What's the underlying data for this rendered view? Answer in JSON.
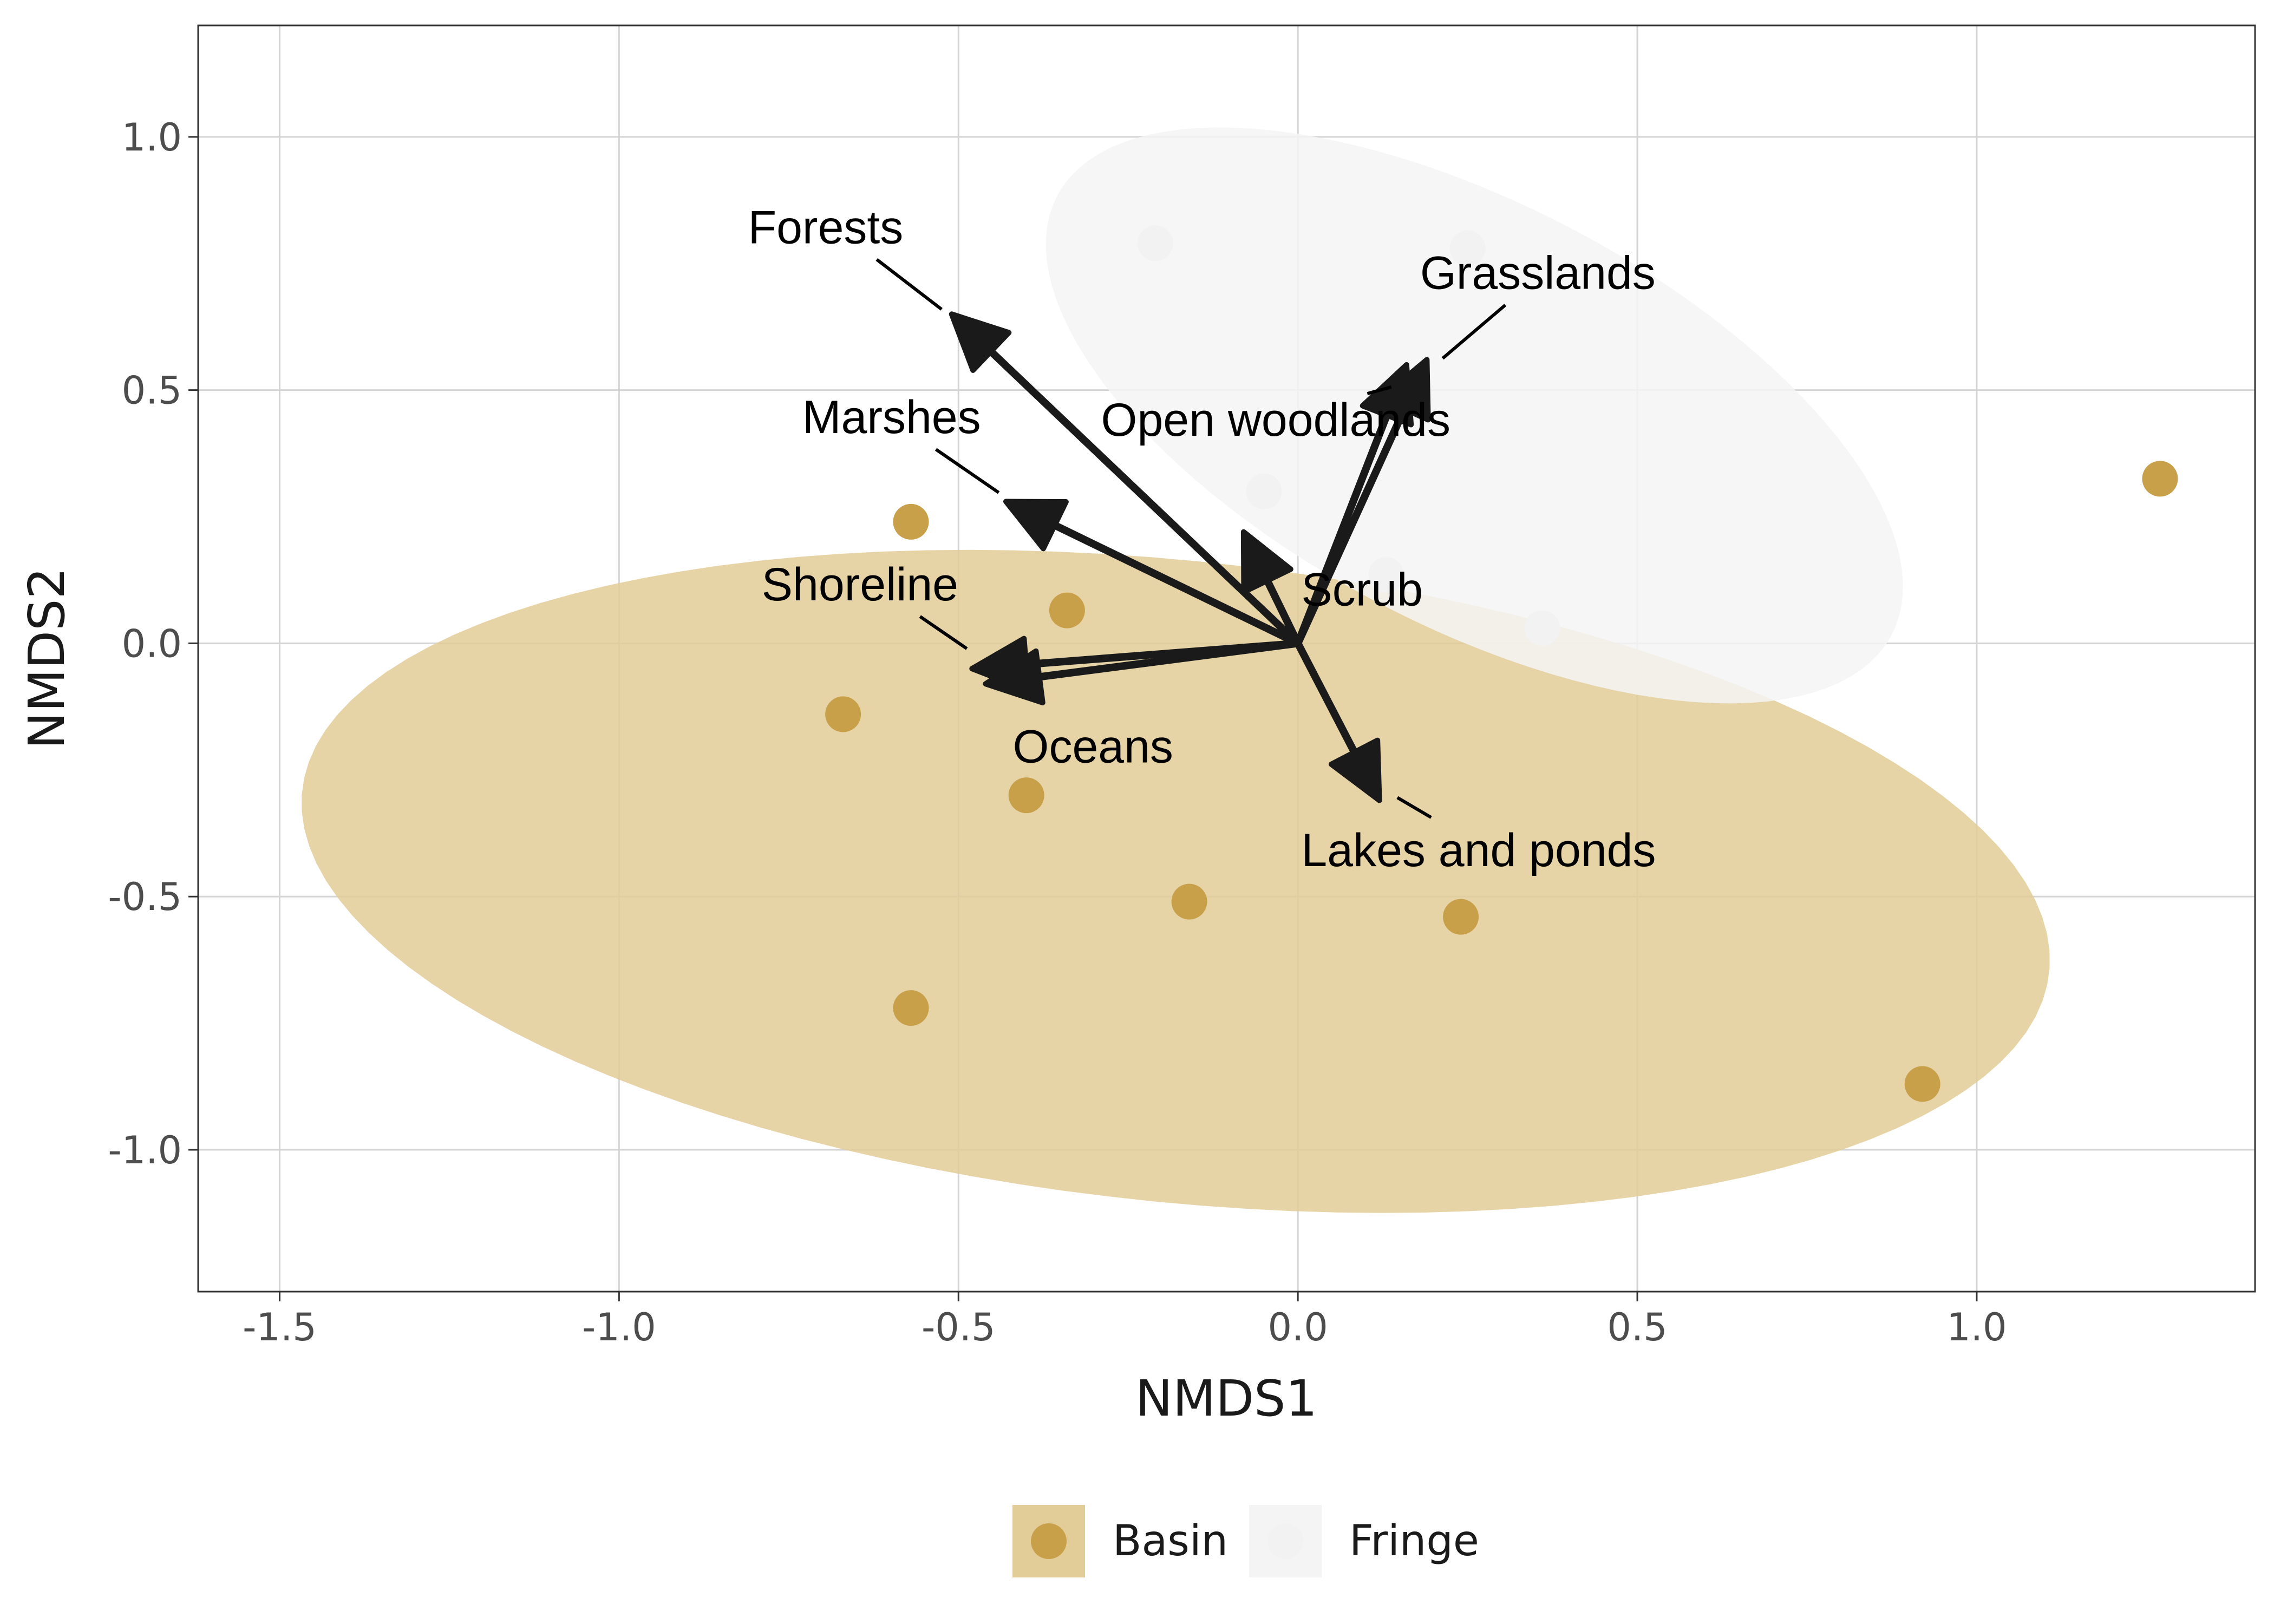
{
  "chart_data": {
    "type": "scatter",
    "xlabel": "NMDS1",
    "ylabel": "NMDS2",
    "xlim": [
      -1.62,
      1.41
    ],
    "ylim": [
      -1.28,
      1.22
    ],
    "x_ticks": [
      {
        "value": -1.5,
        "label": "-1.5"
      },
      {
        "value": -1.0,
        "label": "-1.0"
      },
      {
        "value": -0.5,
        "label": "-0.5"
      },
      {
        "value": 0.0,
        "label": "0.0"
      },
      {
        "value": 0.5,
        "label": "0.5"
      },
      {
        "value": 1.0,
        "label": "1.0"
      }
    ],
    "y_ticks": [
      {
        "value": 1.0,
        "label": "1.0"
      },
      {
        "value": 0.5,
        "label": "0.5"
      },
      {
        "value": 0.0,
        "label": "0.0"
      },
      {
        "value": -0.5,
        "label": "-0.5"
      },
      {
        "value": -1.0,
        "label": "-1.0"
      }
    ],
    "grid": true,
    "legend_position": "bottom",
    "series": [
      {
        "name": "Basin",
        "color": "#c9a04a",
        "ellipse_color": "#e2cc98",
        "ellipse": {
          "cx": -0.18,
          "cy": -0.47,
          "rx": 1.3,
          "ry": 0.63,
          "angle_deg": -9
        },
        "points": [
          {
            "x": -0.57,
            "y": 0.24
          },
          {
            "x": -0.34,
            "y": 0.065
          },
          {
            "x": -0.67,
            "y": -0.14
          },
          {
            "x": -0.4,
            "y": -0.3
          },
          {
            "x": -0.16,
            "y": -0.51
          },
          {
            "x": 0.24,
            "y": -0.54
          },
          {
            "x": -0.57,
            "y": -0.72
          },
          {
            "x": 0.92,
            "y": -0.87
          },
          {
            "x": 1.27,
            "y": 0.325
          }
        ]
      },
      {
        "name": "Fringe",
        "color": "#f2f2f2",
        "ellipse_color": "#f4f4f4",
        "ellipse": {
          "cx": 0.26,
          "cy": 0.45,
          "rx": 0.76,
          "ry": 0.38,
          "angle_deg": -40
        },
        "points": [
          {
            "x": -0.21,
            "y": 0.79
          },
          {
            "x": 0.25,
            "y": 0.78
          },
          {
            "x": -0.05,
            "y": 0.3
          },
          {
            "x": 0.13,
            "y": 0.135
          },
          {
            "x": 0.36,
            "y": 0.03
          }
        ]
      }
    ],
    "vectors": [
      {
        "label": "Forests",
        "x": -0.51,
        "y": 0.65,
        "label_x": -0.81,
        "label_y": 0.79
      },
      {
        "label": "Grasslands",
        "x": 0.19,
        "y": 0.56,
        "label_x": 0.18,
        "label_y": 0.7
      },
      {
        "label": "Open woodlands",
        "x": 0.16,
        "y": 0.55,
        "label_x": -0.29,
        "label_y": 0.41
      },
      {
        "label": "Marshes",
        "x": -0.43,
        "y": 0.28,
        "label_x": -0.73,
        "label_y": 0.415
      },
      {
        "label": "Scrub",
        "x": -0.08,
        "y": 0.22,
        "label_x": 0.005,
        "label_y": 0.075
      },
      {
        "label": "Shoreline",
        "x": -0.48,
        "y": -0.05,
        "label_x": -0.79,
        "label_y": 0.085
      },
      {
        "label": "Oceans",
        "x": -0.46,
        "y": -0.08,
        "label_x": -0.42,
        "label_y": -0.235
      },
      {
        "label": "Lakes and ponds",
        "x": 0.12,
        "y": -0.31,
        "label_x": 0.005,
        "label_y": -0.44
      }
    ]
  }
}
